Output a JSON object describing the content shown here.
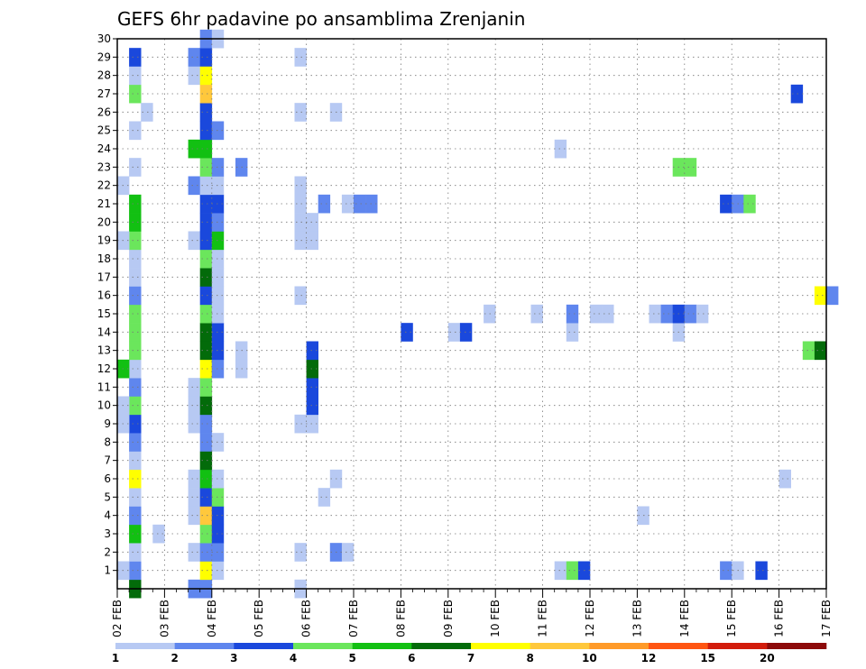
{
  "chart_data": {
    "type": "heatmap",
    "title": "GEFS 6hr padavine po ansamblima Zrenjanin",
    "x_ticks": [
      "02 FEB",
      "03 FEB",
      "04 FEB",
      "05 FEB",
      "06 FEB",
      "07 FEB",
      "08 FEB",
      "09 FEB",
      "10 FEB",
      "11 FEB",
      "12 FEB",
      "13 FEB",
      "14 FEB",
      "15 FEB",
      "16 FEB",
      "17 FEB"
    ],
    "y_ticks": [
      "1",
      "2",
      "3",
      "4",
      "5",
      "6",
      "7",
      "8",
      "9",
      "10",
      "11",
      "12",
      "13",
      "14",
      "15",
      "16",
      "17",
      "18",
      "19",
      "20",
      "21",
      "22",
      "23",
      "24",
      "25",
      "26",
      "27",
      "28",
      "29",
      "30"
    ],
    "x_step_hours": 6,
    "x_range_steps": [
      0,
      60
    ],
    "y_range": [
      0,
      30
    ],
    "grid": true,
    "colorbar": {
      "labels": [
        "1",
        "2",
        "3",
        "4",
        "5",
        "6",
        "7",
        "8",
        "10",
        "12",
        "15",
        "20"
      ],
      "colors": [
        "#b7c9f3",
        "#5f86ee",
        "#1a48dc",
        "#6be65c",
        "#12c012",
        "#036b0a",
        "#ffff00",
        "#ffc83c",
        "#ff9a28",
        "#ff5512",
        "#d21c0c",
        "#8c0a0a"
      ]
    },
    "cells_note": "each cell: [x-step index (6h steps from 02 FEB 00Z), ensemble member, precipitation class index into colorbar.colors]",
    "cells": [
      [
        1,
        0,
        5
      ],
      [
        1,
        1,
        1
      ],
      [
        1,
        2,
        0
      ],
      [
        1,
        3,
        4
      ],
      [
        1,
        4,
        1
      ],
      [
        1,
        5,
        0
      ],
      [
        1,
        6,
        6
      ],
      [
        1,
        7,
        0
      ],
      [
        1,
        8,
        1
      ],
      [
        1,
        9,
        2
      ],
      [
        1,
        10,
        3
      ],
      [
        1,
        11,
        1
      ],
      [
        1,
        12,
        0
      ],
      [
        1,
        13,
        3
      ],
      [
        1,
        14,
        3
      ],
      [
        1,
        15,
        3
      ],
      [
        1,
        16,
        1
      ],
      [
        1,
        17,
        0
      ],
      [
        1,
        18,
        0
      ],
      [
        1,
        19,
        3
      ],
      [
        1,
        20,
        4
      ],
      [
        1,
        21,
        4
      ],
      [
        1,
        23,
        0
      ],
      [
        1,
        25,
        0
      ],
      [
        1,
        27,
        3
      ],
      [
        1,
        28,
        0
      ],
      [
        1,
        29,
        2
      ],
      [
        0,
        1,
        0
      ],
      [
        0,
        9,
        0
      ],
      [
        0,
        10,
        0
      ],
      [
        0,
        12,
        4
      ],
      [
        0,
        19,
        0
      ],
      [
        0,
        22,
        0
      ],
      [
        2,
        26,
        0
      ],
      [
        3,
        3,
        0
      ],
      [
        6,
        0,
        1
      ],
      [
        6,
        2,
        0
      ],
      [
        6,
        4,
        0
      ],
      [
        6,
        5,
        0
      ],
      [
        6,
        6,
        0
      ],
      [
        6,
        9,
        0
      ],
      [
        6,
        10,
        0
      ],
      [
        6,
        11,
        0
      ],
      [
        6,
        19,
        0
      ],
      [
        6,
        22,
        1
      ],
      [
        6,
        24,
        4
      ],
      [
        6,
        28,
        0
      ],
      [
        6,
        29,
        1
      ],
      [
        7,
        0,
        1
      ],
      [
        7,
        1,
        6
      ],
      [
        7,
        2,
        1
      ],
      [
        7,
        3,
        3
      ],
      [
        7,
        4,
        7
      ],
      [
        7,
        5,
        2
      ],
      [
        7,
        6,
        4
      ],
      [
        7,
        7,
        5
      ],
      [
        7,
        8,
        1
      ],
      [
        7,
        9,
        1
      ],
      [
        7,
        10,
        5
      ],
      [
        7,
        11,
        3
      ],
      [
        7,
        12,
        6
      ],
      [
        7,
        13,
        5
      ],
      [
        7,
        14,
        5
      ],
      [
        7,
        15,
        3
      ],
      [
        7,
        16,
        2
      ],
      [
        7,
        17,
        5
      ],
      [
        7,
        18,
        3
      ],
      [
        7,
        19,
        2
      ],
      [
        7,
        20,
        2
      ],
      [
        7,
        21,
        2
      ],
      [
        7,
        22,
        0
      ],
      [
        7,
        23,
        3
      ],
      [
        7,
        24,
        4
      ],
      [
        7,
        25,
        2
      ],
      [
        7,
        26,
        2
      ],
      [
        7,
        27,
        7
      ],
      [
        7,
        28,
        6
      ],
      [
        7,
        29,
        2
      ],
      [
        7,
        30,
        1
      ],
      [
        8,
        1,
        0
      ],
      [
        8,
        2,
        1
      ],
      [
        8,
        3,
        2
      ],
      [
        8,
        4,
        2
      ],
      [
        8,
        5,
        3
      ],
      [
        8,
        6,
        0
      ],
      [
        8,
        8,
        0
      ],
      [
        8,
        12,
        1
      ],
      [
        8,
        13,
        2
      ],
      [
        8,
        14,
        2
      ],
      [
        8,
        15,
        0
      ],
      [
        8,
        16,
        0
      ],
      [
        8,
        17,
        0
      ],
      [
        8,
        18,
        0
      ],
      [
        8,
        19,
        4
      ],
      [
        8,
        20,
        1
      ],
      [
        8,
        21,
        2
      ],
      [
        8,
        22,
        0
      ],
      [
        8,
        23,
        1
      ],
      [
        8,
        25,
        1
      ],
      [
        8,
        30,
        0
      ],
      [
        10,
        13,
        0
      ],
      [
        10,
        12,
        0
      ],
      [
        10,
        23,
        1
      ],
      [
        15,
        0,
        0
      ],
      [
        15,
        2,
        0
      ],
      [
        15,
        9,
        0
      ],
      [
        15,
        19,
        0
      ],
      [
        15,
        20,
        0
      ],
      [
        15,
        21,
        0
      ],
      [
        15,
        22,
        0
      ],
      [
        15,
        26,
        0
      ],
      [
        15,
        29,
        0
      ],
      [
        15,
        16,
        0
      ],
      [
        16,
        9,
        0
      ],
      [
        16,
        10,
        2
      ],
      [
        16,
        11,
        2
      ],
      [
        16,
        12,
        5
      ],
      [
        16,
        13,
        2
      ],
      [
        16,
        19,
        0
      ],
      [
        16,
        20,
        0
      ],
      [
        17,
        5,
        0
      ],
      [
        17,
        21,
        1
      ],
      [
        18,
        6,
        0
      ],
      [
        18,
        2,
        1
      ],
      [
        18,
        26,
        0
      ],
      [
        19,
        2,
        0
      ],
      [
        19,
        21,
        0
      ],
      [
        20,
        21,
        1
      ],
      [
        21,
        21,
        1
      ],
      [
        24,
        14,
        2
      ],
      [
        28,
        14,
        0
      ],
      [
        29,
        14,
        2
      ],
      [
        31,
        15,
        0
      ],
      [
        35,
        15,
        0
      ],
      [
        37,
        1,
        0
      ],
      [
        37,
        24,
        0
      ],
      [
        38,
        1,
        3
      ],
      [
        38,
        14,
        0
      ],
      [
        38,
        15,
        1
      ],
      [
        39,
        1,
        2
      ],
      [
        40,
        15,
        0
      ],
      [
        41,
        15,
        0
      ],
      [
        44,
        4,
        0
      ],
      [
        45,
        15,
        0
      ],
      [
        46,
        15,
        1
      ],
      [
        47,
        14,
        0
      ],
      [
        47,
        15,
        2
      ],
      [
        47,
        23,
        3
      ],
      [
        48,
        15,
        1
      ],
      [
        48,
        23,
        3
      ],
      [
        49,
        15,
        0
      ],
      [
        51,
        1,
        1
      ],
      [
        51,
        21,
        2
      ],
      [
        52,
        1,
        0
      ],
      [
        52,
        21,
        1
      ],
      [
        53,
        21,
        3
      ],
      [
        54,
        1,
        2
      ],
      [
        56,
        6,
        0
      ],
      [
        57,
        27,
        2
      ],
      [
        58,
        13,
        3
      ],
      [
        59,
        13,
        5
      ],
      [
        59,
        16,
        6
      ],
      [
        60,
        16,
        1
      ]
    ]
  }
}
